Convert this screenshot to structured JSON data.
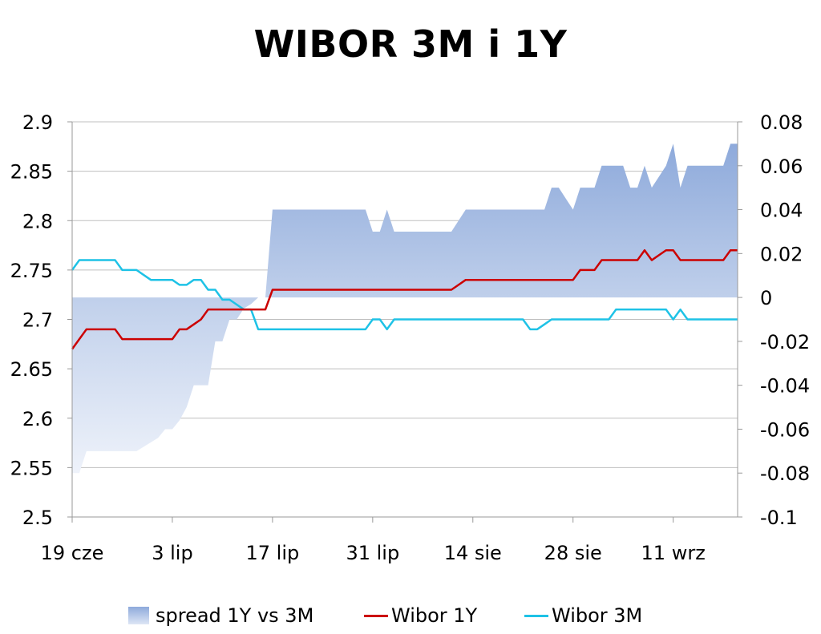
{
  "chart_data": {
    "type": "line",
    "title": "WIBOR 3M i 1Y",
    "x_tick_labels": [
      "19 cze",
      "3 lip",
      "17 lip",
      "31 lip",
      "14 sie",
      "28 sie",
      "11 wrz"
    ],
    "y_left": {
      "ylim": [
        2.5,
        2.9
      ],
      "ticks": [
        "2.9",
        "2.85",
        "2.8",
        "2.75",
        "2.7",
        "2.65",
        "2.6",
        "2.55",
        "2.5"
      ]
    },
    "y_right": {
      "ylim": [
        -0.1,
        0.08
      ],
      "ticks": [
        "0.08",
        "0.06",
        "0.04",
        "0.02",
        "0",
        "-0.02",
        "-0.04",
        "-0.06",
        "-0.08",
        "-0.1"
      ]
    },
    "grid": true,
    "legend_position": "bottom",
    "x_day_range": [
      0,
      93
    ],
    "series": [
      {
        "name": "spread 1Y vs 3M",
        "type": "area",
        "axis": "right",
        "color": "#8eaadb",
        "x": [
          0,
          1,
          2,
          3,
          4,
          5,
          6,
          7,
          8,
          9,
          10,
          11,
          12,
          13,
          14,
          15,
          16,
          17,
          18,
          19,
          20,
          21,
          22,
          23,
          24,
          25,
          26,
          27,
          28,
          29,
          30,
          31,
          32,
          33,
          34,
          35,
          36,
          37,
          38,
          39,
          40,
          41,
          42,
          43,
          44,
          45,
          46,
          47,
          48,
          49,
          50,
          51,
          52,
          53,
          54,
          55,
          56,
          57,
          58,
          59,
          60,
          61,
          62,
          63,
          64,
          65,
          66,
          67,
          68,
          69,
          70,
          71,
          72,
          73,
          74,
          75,
          76,
          77,
          78,
          79,
          80,
          81,
          82,
          83,
          84,
          85,
          86,
          87,
          88,
          89,
          90,
          91,
          92,
          93
        ],
        "values": [
          -0.08,
          -0.08,
          -0.07,
          -0.07,
          -0.07,
          -0.07,
          -0.07,
          -0.07,
          -0.07,
          -0.07,
          -0.068,
          -0.066,
          -0.064,
          -0.06,
          -0.06,
          -0.056,
          -0.05,
          -0.04,
          -0.04,
          -0.04,
          -0.02,
          -0.02,
          -0.01,
          -0.01,
          -0.005,
          -0.003,
          0.0,
          0.0,
          0.04,
          0.04,
          0.04,
          0.04,
          0.04,
          0.04,
          0.04,
          0.04,
          0.04,
          0.04,
          0.04,
          0.04,
          0.04,
          0.04,
          0.03,
          0.03,
          0.04,
          0.03,
          0.03,
          0.03,
          0.03,
          0.03,
          0.03,
          0.03,
          0.03,
          0.03,
          0.035,
          0.04,
          0.04,
          0.04,
          0.04,
          0.04,
          0.04,
          0.04,
          0.04,
          0.04,
          0.04,
          0.04,
          0.04,
          0.05,
          0.05,
          0.045,
          0.04,
          0.05,
          0.05,
          0.05,
          0.06,
          0.06,
          0.06,
          0.06,
          0.05,
          0.05,
          0.06,
          0.05,
          0.055,
          0.06,
          0.07,
          0.05,
          0.06,
          0.06,
          0.06,
          0.06,
          0.06,
          0.06,
          0.07,
          0.07
        ]
      },
      {
        "name": "Wibor 1Y",
        "type": "line",
        "axis": "left",
        "color": "#cc0000",
        "x": [
          0,
          1,
          2,
          3,
          4,
          5,
          6,
          7,
          8,
          9,
          10,
          11,
          12,
          13,
          14,
          15,
          16,
          17,
          18,
          19,
          20,
          21,
          22,
          23,
          24,
          25,
          26,
          27,
          28,
          29,
          30,
          31,
          32,
          33,
          34,
          35,
          36,
          37,
          38,
          39,
          40,
          41,
          42,
          43,
          44,
          45,
          46,
          47,
          48,
          49,
          50,
          51,
          52,
          53,
          54,
          55,
          56,
          57,
          58,
          59,
          60,
          61,
          62,
          63,
          64,
          65,
          66,
          67,
          68,
          69,
          70,
          71,
          72,
          73,
          74,
          75,
          76,
          77,
          78,
          79,
          80,
          81,
          82,
          83,
          84,
          85,
          86,
          87,
          88,
          89,
          90,
          91,
          92,
          93
        ],
        "values": [
          2.67,
          2.68,
          2.69,
          2.69,
          2.69,
          2.69,
          2.69,
          2.68,
          2.68,
          2.68,
          2.68,
          2.68,
          2.68,
          2.68,
          2.68,
          2.69,
          2.69,
          2.695,
          2.7,
          2.71,
          2.71,
          2.71,
          2.71,
          2.71,
          2.71,
          2.71,
          2.71,
          2.71,
          2.73,
          2.73,
          2.73,
          2.73,
          2.73,
          2.73,
          2.73,
          2.73,
          2.73,
          2.73,
          2.73,
          2.73,
          2.73,
          2.73,
          2.73,
          2.73,
          2.73,
          2.73,
          2.73,
          2.73,
          2.73,
          2.73,
          2.73,
          2.73,
          2.73,
          2.73,
          2.735,
          2.74,
          2.74,
          2.74,
          2.74,
          2.74,
          2.74,
          2.74,
          2.74,
          2.74,
          2.74,
          2.74,
          2.74,
          2.74,
          2.74,
          2.74,
          2.74,
          2.75,
          2.75,
          2.75,
          2.76,
          2.76,
          2.76,
          2.76,
          2.76,
          2.76,
          2.77,
          2.76,
          2.765,
          2.77,
          2.77,
          2.76,
          2.76,
          2.76,
          2.76,
          2.76,
          2.76,
          2.76,
          2.77,
          2.77
        ]
      },
      {
        "name": "Wibor 3M",
        "type": "line",
        "axis": "left",
        "color": "#1ec2e6",
        "x": [
          0,
          1,
          2,
          3,
          4,
          5,
          6,
          7,
          8,
          9,
          10,
          11,
          12,
          13,
          14,
          15,
          16,
          17,
          18,
          19,
          20,
          21,
          22,
          23,
          24,
          25,
          26,
          27,
          28,
          29,
          30,
          31,
          32,
          33,
          34,
          35,
          36,
          37,
          38,
          39,
          40,
          41,
          42,
          43,
          44,
          45,
          46,
          47,
          48,
          49,
          50,
          51,
          52,
          53,
          54,
          55,
          56,
          57,
          58,
          59,
          60,
          61,
          62,
          63,
          64,
          65,
          66,
          67,
          68,
          69,
          70,
          71,
          72,
          73,
          74,
          75,
          76,
          77,
          78,
          79,
          80,
          81,
          82,
          83,
          84,
          85,
          86,
          87,
          88,
          89,
          90,
          91,
          92,
          93
        ],
        "values": [
          2.75,
          2.76,
          2.76,
          2.76,
          2.76,
          2.76,
          2.76,
          2.75,
          2.75,
          2.75,
          2.745,
          2.74,
          2.74,
          2.74,
          2.74,
          2.735,
          2.735,
          2.74,
          2.74,
          2.73,
          2.73,
          2.72,
          2.72,
          2.715,
          2.71,
          2.71,
          2.69,
          2.69,
          2.69,
          2.69,
          2.69,
          2.69,
          2.69,
          2.69,
          2.69,
          2.69,
          2.69,
          2.69,
          2.69,
          2.69,
          2.69,
          2.69,
          2.7,
          2.7,
          2.69,
          2.7,
          2.7,
          2.7,
          2.7,
          2.7,
          2.7,
          2.7,
          2.7,
          2.7,
          2.7,
          2.7,
          2.7,
          2.7,
          2.7,
          2.7,
          2.7,
          2.7,
          2.7,
          2.7,
          2.69,
          2.69,
          2.695,
          2.7,
          2.7,
          2.7,
          2.7,
          2.7,
          2.7,
          2.7,
          2.7,
          2.7,
          2.71,
          2.71,
          2.71,
          2.71,
          2.71,
          2.71,
          2.71,
          2.71,
          2.7,
          2.71,
          2.7,
          2.7,
          2.7,
          2.7,
          2.7,
          2.7,
          2.7,
          2.7
        ]
      }
    ]
  }
}
